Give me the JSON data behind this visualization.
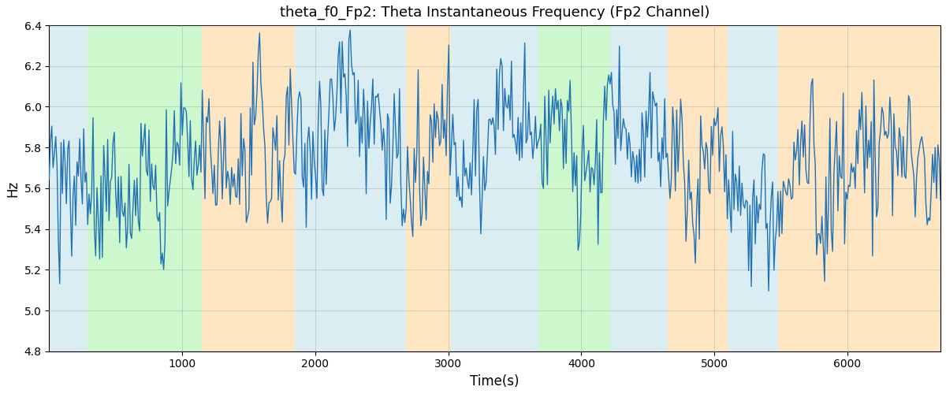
{
  "title": "theta_f0_Fp2: Theta Instantaneous Frequency (Fp2 Channel)",
  "xlabel": "Time(s)",
  "ylabel": "Hz",
  "ylim": [
    4.8,
    6.4
  ],
  "xlim": [
    0,
    6700
  ],
  "line_color": "#2171b5",
  "line_width": 1.0,
  "bg_color": "white",
  "grid_alpha": 0.4,
  "grid_color": "gray",
  "regions": [
    {
      "start": 0,
      "end": 290,
      "color": "#add8e6",
      "alpha": 0.45
    },
    {
      "start": 290,
      "end": 1150,
      "color": "#90ee90",
      "alpha": 0.45
    },
    {
      "start": 1150,
      "end": 1850,
      "color": "#ffc87a",
      "alpha": 0.45
    },
    {
      "start": 1850,
      "end": 2680,
      "color": "#add8e6",
      "alpha": 0.45
    },
    {
      "start": 2680,
      "end": 3020,
      "color": "#ffc87a",
      "alpha": 0.45
    },
    {
      "start": 3020,
      "end": 3680,
      "color": "#add8e6",
      "alpha": 0.45
    },
    {
      "start": 3680,
      "end": 4220,
      "color": "#90ee90",
      "alpha": 0.45
    },
    {
      "start": 4220,
      "end": 4650,
      "color": "#add8e6",
      "alpha": 0.45
    },
    {
      "start": 4650,
      "end": 5100,
      "color": "#ffc87a",
      "alpha": 0.45
    },
    {
      "start": 5100,
      "end": 5480,
      "color": "#add8e6",
      "alpha": 0.45
    },
    {
      "start": 5480,
      "end": 5900,
      "color": "#ffc87a",
      "alpha": 0.45
    },
    {
      "start": 5900,
      "end": 6700,
      "color": "#ffc87a",
      "alpha": 0.45
    }
  ],
  "seed": 42,
  "n_points": 670,
  "mean_freq": 5.7,
  "yticks": [
    4.8,
    5.0,
    5.2,
    5.4,
    5.6,
    5.8,
    6.0,
    6.2,
    6.4
  ],
  "xticks": [
    1000,
    2000,
    3000,
    4000,
    5000,
    6000
  ],
  "figsize": [
    12.0,
    5.0
  ],
  "dpi": 100,
  "title_fontsize": 13,
  "label_fontsize": 12
}
